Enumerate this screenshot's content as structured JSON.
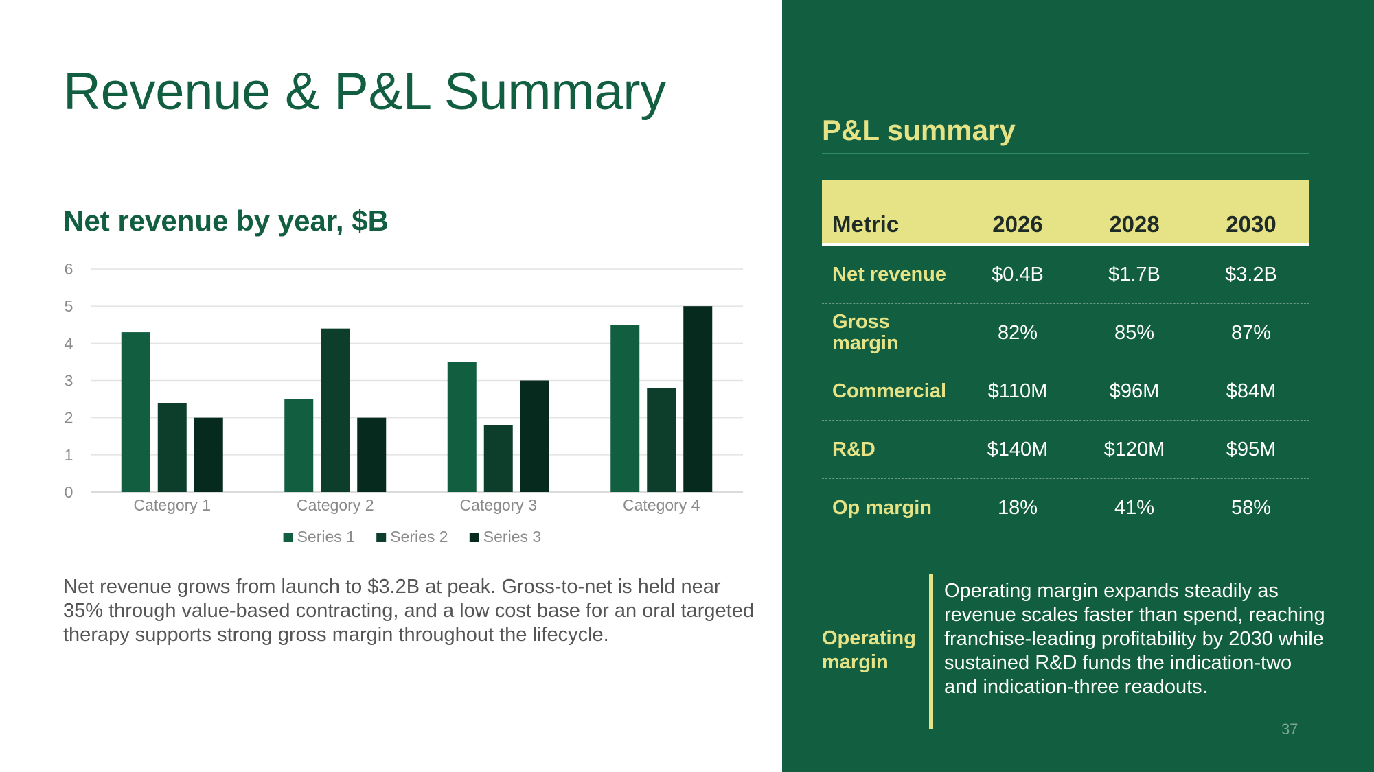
{
  "slide": {
    "title": "Revenue & P&L Summary",
    "page_number": "37"
  },
  "chart_section": {
    "title": "Net revenue by year, $B",
    "body": "Net revenue grows from launch to $3.2B at peak. Gross-to-net is held near 35% through value-based contracting, and a low cost base for an oral targeted therapy supports strong gross margin throughout the lifecycle."
  },
  "chart_data": {
    "type": "bar",
    "categories": [
      "Category 1",
      "Category 2",
      "Category 3",
      "Category 4"
    ],
    "series": [
      {
        "name": "Series 1",
        "values": [
          4.3,
          2.5,
          3.5,
          4.5
        ],
        "color": "#125e41"
      },
      {
        "name": "Series 2",
        "values": [
          2.4,
          4.4,
          1.8,
          2.8
        ],
        "color": "#0c3e2b"
      },
      {
        "name": "Series 3",
        "values": [
          2.0,
          2.0,
          3.0,
          5.0
        ],
        "color": "#072a1e"
      }
    ],
    "ylim": [
      0,
      6
    ],
    "yticks": [
      "0",
      "1",
      "2",
      "3",
      "4",
      "5",
      "6"
    ],
    "grid": true,
    "legend": "bottom"
  },
  "panel": {
    "title": "P&L summary",
    "table": {
      "headers": [
        "Metric",
        "2026",
        "2028",
        "2030"
      ],
      "rows": [
        {
          "metric": "Net revenue",
          "values": [
            "$0.4B",
            "$1.7B",
            "$3.2B"
          ]
        },
        {
          "metric": "Gross margin",
          "values": [
            "82%",
            "85%",
            "87%"
          ]
        },
        {
          "metric": "Commercial",
          "values": [
            "$110M",
            "$96M",
            "$84M"
          ]
        },
        {
          "metric": "R&D",
          "values": [
            "$140M",
            "$120M",
            "$95M"
          ]
        },
        {
          "metric": "Op margin",
          "values": [
            "18%",
            "41%",
            "58%"
          ]
        }
      ]
    },
    "callout": {
      "label": "Operating margin",
      "text": "Operating margin expands steadily as revenue scales faster than spend, reaching franchise-leading profitability by 2030 while sustained R&D funds the indication-two and indication-three readouts."
    }
  },
  "colors": {
    "brand_green": "#125e41",
    "accent_yellow": "#e6e386"
  }
}
